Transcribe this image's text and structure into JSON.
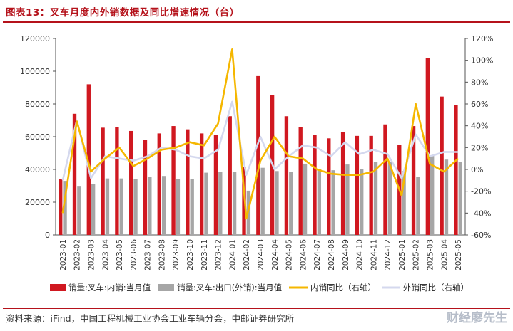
{
  "title": "图表13：叉车月度内外销数据及同比增速情况（台）",
  "source": "资料来源：iFind，中国工程机械工业协会工业车辆分会，中邮证券研究所",
  "watermark": "财经廖先生",
  "colors": {
    "red_bar": "#d01820",
    "gray_bar": "#a6a6a6",
    "domestic_line": "#f5b700",
    "export_line": "#d4d8ee",
    "title": "#b5121b"
  },
  "chart_data": {
    "type": "bar",
    "categories": [
      "2023-01",
      "2023-02",
      "2023-03",
      "2023-04",
      "2023-05",
      "2023-06",
      "2023-07",
      "2023-08",
      "2023-09",
      "2023-10",
      "2023-11",
      "2023-12",
      "2024-01",
      "2024-02",
      "2024-03",
      "2024-04",
      "2024-05",
      "2024-06",
      "2024-07",
      "2024-08",
      "2024-09",
      "2024-10",
      "2024-11",
      "2024-12",
      "2025-01",
      "2025-02",
      "2025-03",
      "2025-04",
      "2025-05"
    ],
    "left_axis": {
      "min": 0,
      "max": 120000,
      "step": 20000,
      "ticks": [
        "0",
        "20000",
        "40000",
        "60000",
        "80000",
        "100000",
        "120000"
      ]
    },
    "right_axis": {
      "min": -60,
      "max": 120,
      "step": 20,
      "ticks": [
        "-60%",
        "-40%",
        "-20%",
        "0%",
        "20%",
        "40%",
        "60%",
        "80%",
        "100%",
        "120%"
      ]
    },
    "series": [
      {
        "name": "销量:叉车:内销:当月值",
        "type": "bar",
        "axis": "left",
        "color": "#d01820",
        "values": [
          34000,
          74000,
          92000,
          65500,
          66000,
          63500,
          58000,
          62000,
          66500,
          64500,
          62000,
          61000,
          72500,
          41500,
          97000,
          85500,
          72500,
          66000,
          61000,
          59000,
          63000,
          60500,
          60500,
          67500,
          55000,
          66500,
          108000,
          84500,
          79500
        ]
      },
      {
        "name": "销量:叉车:出口(外销):当月值",
        "type": "bar",
        "axis": "left",
        "color": "#a6a6a6",
        "values": [
          33000,
          29500,
          31000,
          34500,
          34500,
          34000,
          35500,
          36000,
          34000,
          34000,
          38000,
          38500,
          38500,
          27000,
          41000,
          39000,
          38500,
          43500,
          40000,
          39500,
          43000,
          40000,
          44500,
          44500,
          39000,
          35500,
          48500,
          46000,
          44500
        ]
      },
      {
        "name": "内销同比（右轴）",
        "type": "line",
        "axis": "right",
        "color": "#f5b700",
        "values": [
          -40,
          44,
          -2,
          10,
          20,
          3,
          10,
          18,
          20,
          25,
          22,
          42,
          110,
          -45,
          8,
          30,
          12,
          10,
          0,
          -4,
          -5,
          -5,
          -2,
          10,
          -24,
          60,
          5,
          -2,
          10
        ]
      },
      {
        "name": "外销同比（右轴）",
        "type": "line",
        "axis": "right",
        "color": "#d4d8ee",
        "values": [
          -10,
          45,
          -8,
          12,
          10,
          8,
          12,
          20,
          18,
          12,
          10,
          18,
          62,
          -5,
          30,
          0,
          12,
          22,
          20,
          12,
          25,
          14,
          18,
          14,
          -8,
          32,
          12,
          16,
          16
        ]
      }
    ],
    "legend_labels": [
      "销量:叉车:内销:当月值",
      "销量:叉车:出口(外销):当月值",
      "内销同比（右轴）",
      "外销同比（右轴）"
    ],
    "legend_position": "bottom",
    "grid": false
  }
}
